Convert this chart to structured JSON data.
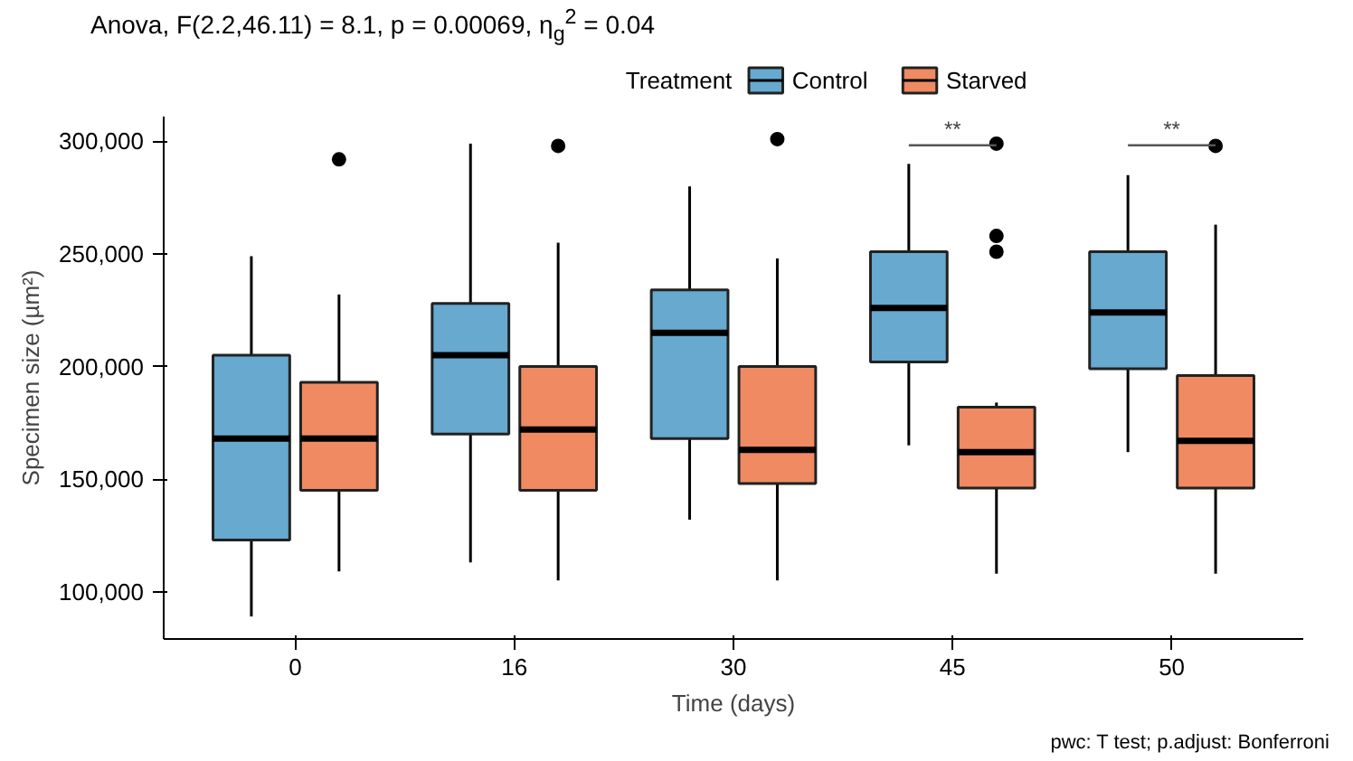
{
  "chart_data": {
    "type": "box",
    "title": "Anova, F(2.2,46.11) = 8.1, p = 0.00069, η$_{g}$$^{2}$ = 0.04",
    "xlabel": "Time (days)",
    "ylabel": "Specimen size (µm²)",
    "legend_title": "Treatment",
    "legend": "top",
    "grid": false,
    "categories": [
      "0",
      "16",
      "30",
      "45",
      "50"
    ],
    "ylim": [
      79000,
      311000
    ],
    "yticks": [
      {
        "value": 100000,
        "label": "100,000"
      },
      {
        "value": 150000,
        "label": "150,000"
      },
      {
        "value": 200000,
        "label": "200,000"
      },
      {
        "value": 250000,
        "label": "250,000"
      },
      {
        "value": 300000,
        "label": "300,000"
      }
    ],
    "series": [
      {
        "name": "Control",
        "color": "#67a9cf",
        "boxes": [
          {
            "low": 89000,
            "q1": 123000,
            "median": 168000,
            "q3": 205000,
            "high": 249000
          },
          {
            "low": 113000,
            "q1": 170000,
            "median": 205000,
            "q3": 228000,
            "high": 299000
          },
          {
            "low": 132000,
            "q1": 168000,
            "median": 215000,
            "q3": 234000,
            "high": 280000
          },
          {
            "low": 165000,
            "q1": 202000,
            "median": 226000,
            "q3": 251000,
            "high": 290000
          },
          {
            "low": 162000,
            "q1": 199000,
            "median": 224000,
            "q3": 251000,
            "high": 285000
          }
        ]
      },
      {
        "name": "Starved",
        "color": "#ef8a62",
        "boxes": [
          {
            "low": 109000,
            "q1": 145000,
            "median": 168000,
            "q3": 193000,
            "high": 232000,
            "outliers": [
              292000
            ]
          },
          {
            "low": 105000,
            "q1": 145000,
            "median": 172000,
            "q3": 200000,
            "high": 255000,
            "outliers": [
              298000
            ]
          },
          {
            "low": 105000,
            "q1": 148000,
            "median": 163000,
            "q3": 200000,
            "high": 248000,
            "outliers": [
              301000
            ]
          },
          {
            "low": 108000,
            "q1": 146000,
            "median": 162000,
            "q3": 182000,
            "high": 184000,
            "outliers": [
              299000,
              258000,
              251000
            ]
          },
          {
            "low": 108000,
            "q1": 146000,
            "median": 167000,
            "q3": 196000,
            "high": 263000,
            "outliers": [
              298000
            ]
          }
        ]
      }
    ],
    "annotations": [
      "**",
      "**",
      "pwc: T test; p.adjust: Bonferroni"
    ]
  }
}
